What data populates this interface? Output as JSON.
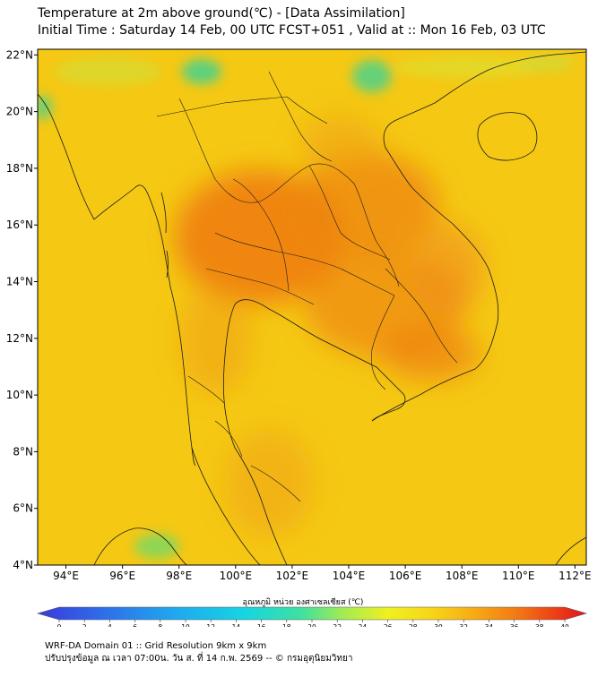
{
  "header": {
    "title_line1": "Temperature at 2m above ground(℃) - [Data Assimilation]",
    "title_line2": "Initial Time : Saturday 14 Feb, 00 UTC FCST+051 , Valid at :: Mon 16 Feb, 03 UTC"
  },
  "map": {
    "lat_ticks": [
      "22°N",
      "20°N",
      "18°N",
      "16°N",
      "14°N",
      "12°N",
      "10°N",
      "8°N",
      "6°N",
      "4°N"
    ],
    "lon_ticks": [
      "94°E",
      "96°E",
      "98°E",
      "100°E",
      "102°E",
      "104°E",
      "106°E",
      "108°E",
      "110°E",
      "112°E"
    ],
    "lat_range": [
      4,
      22.2
    ],
    "lon_range": [
      93.0,
      112.4
    ],
    "background_color": "#f5c814",
    "hot_color": "#ee7a10",
    "cool_color": "#b4e05a",
    "cold_color": "#4ed28a"
  },
  "colorbar": {
    "label": "อุณหภูมิ หน่วย องศาเซลเซียส (℃)",
    "ticks": [
      "0",
      "2",
      "4",
      "6",
      "8",
      "10",
      "12",
      "14",
      "16",
      "18",
      "20",
      "22",
      "24",
      "26",
      "28",
      "30",
      "32",
      "34",
      "36",
      "38",
      "40"
    ],
    "range": [
      0,
      40
    ]
  },
  "footer": {
    "line1": "WRF-DA Domain 01 :: Grid Resolution 9km x 9km",
    "line2": "ปรับปรุงข้อมูล ณ เวลา 07:00น. วัน ส. ที่ 14 ก.พ. 2569 -- © กรมอุตุนิยมวิทยา"
  }
}
